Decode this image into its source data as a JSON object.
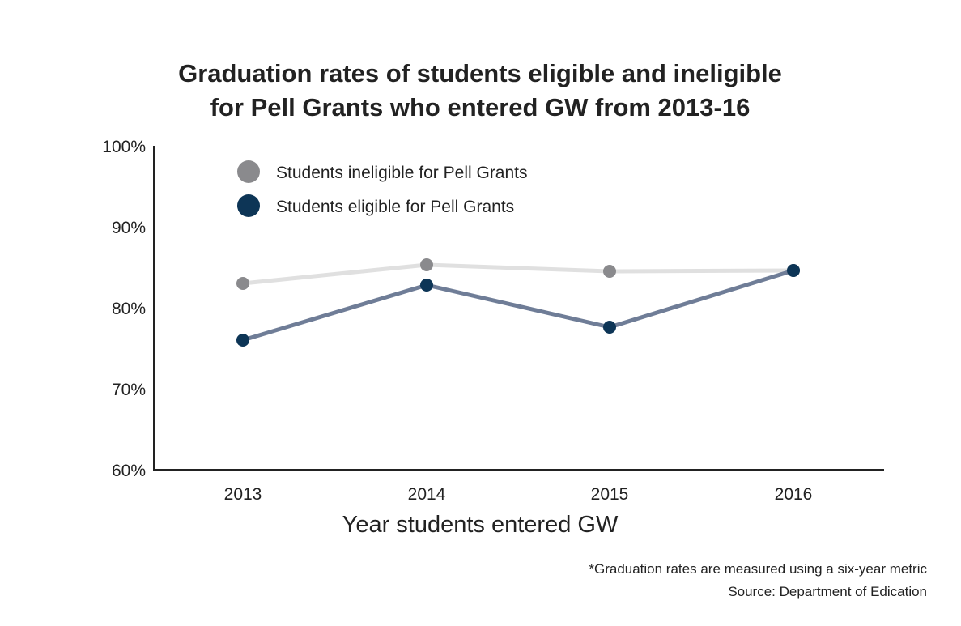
{
  "chart_data": {
    "type": "line",
    "title": [
      "Graduation rates of students eligible and ineligible",
      "for Pell Grants who entered GW from 2013-16"
    ],
    "categories": [
      "2013",
      "2014",
      "2015",
      "2016"
    ],
    "series": [
      {
        "name": "Students ineligible for Pell Grants",
        "values": [
          83,
          85.3,
          84.5,
          84.6
        ],
        "line_color": "#e0e0e0",
        "marker_color": "#8a8a8d"
      },
      {
        "name": "Students eligible for Pell Grants",
        "values": [
          76,
          82.8,
          77.6,
          84.6
        ],
        "line_color": "#6f7d97",
        "marker_color": "#0d3556"
      }
    ],
    "xlabel": "Year students entered GW",
    "ylabel": "",
    "ylim": [
      60,
      100
    ],
    "yticks": [
      "60%",
      "70%",
      "80%",
      "90%",
      "100%"
    ],
    "grid": false,
    "legend": "top-left",
    "notes": [
      "*Graduation rates are measured using a six-year metric",
      "Source: Department of Edication"
    ]
  }
}
